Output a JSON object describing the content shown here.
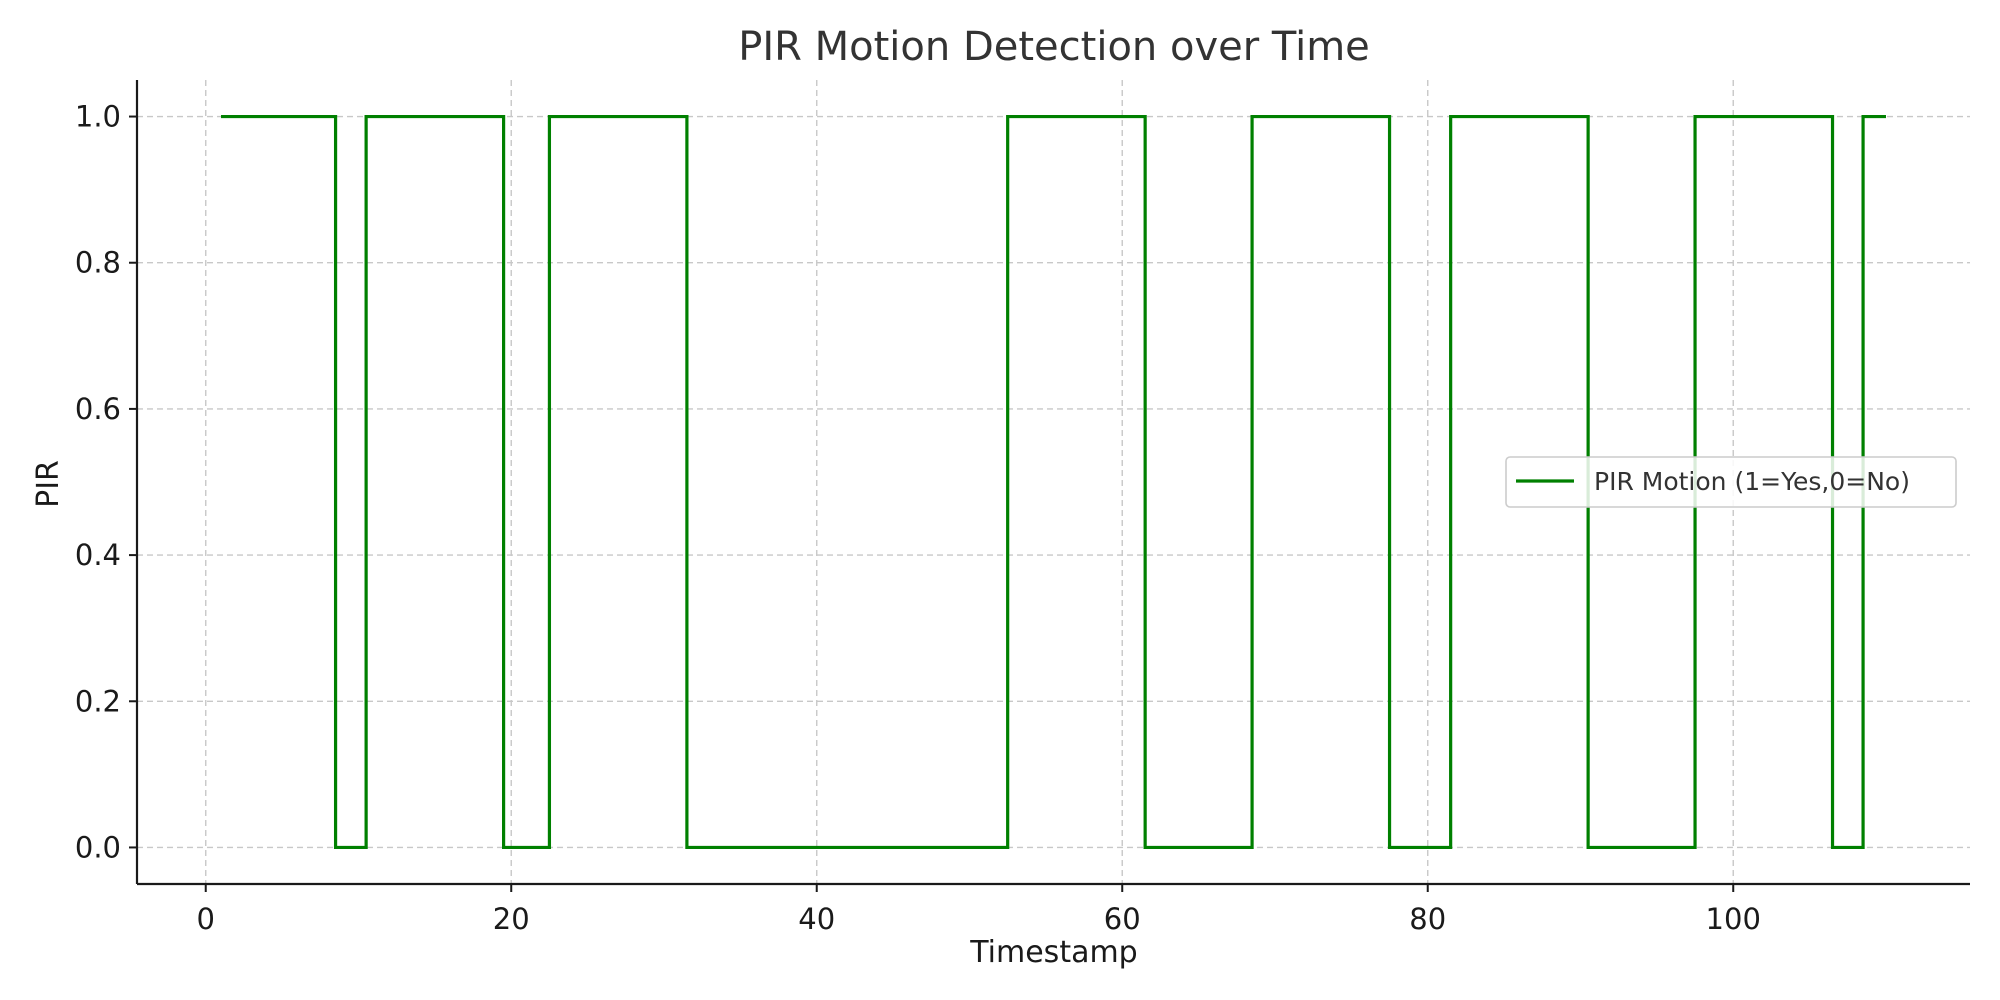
{
  "chart_data": {
    "type": "line",
    "step": "post",
    "title": "PIR Motion Detection over Time",
    "xlabel": "Timestamp",
    "ylabel": "PIR",
    "xlim": [
      -4.5,
      115.5
    ],
    "ylim": [
      -0.05,
      1.05
    ],
    "x_ticks": [
      0,
      20,
      40,
      60,
      80,
      100
    ],
    "y_ticks": [
      0.0,
      0.2,
      0.4,
      0.6,
      0.8,
      1.0
    ],
    "x_tick_labels": [
      "0",
      "20",
      "40",
      "60",
      "80",
      "100"
    ],
    "y_tick_labels": [
      "0.0",
      "0.2",
      "0.4",
      "0.6",
      "0.8",
      "1.0"
    ],
    "grid": true,
    "legend_position": "center-right",
    "series": [
      {
        "name": "PIR Motion (1=Yes,0=No)",
        "color": "#008000",
        "x": [
          1,
          8.5,
          10.5,
          19.5,
          22.5,
          31.5,
          52.5,
          61.5,
          68.5,
          77.5,
          81.5,
          90.5,
          97.5,
          106.5,
          108.5,
          110
        ],
        "values": [
          1,
          0,
          1,
          0,
          1,
          0,
          1,
          0,
          1,
          0,
          1,
          0,
          1,
          0,
          1,
          1
        ]
      }
    ]
  }
}
